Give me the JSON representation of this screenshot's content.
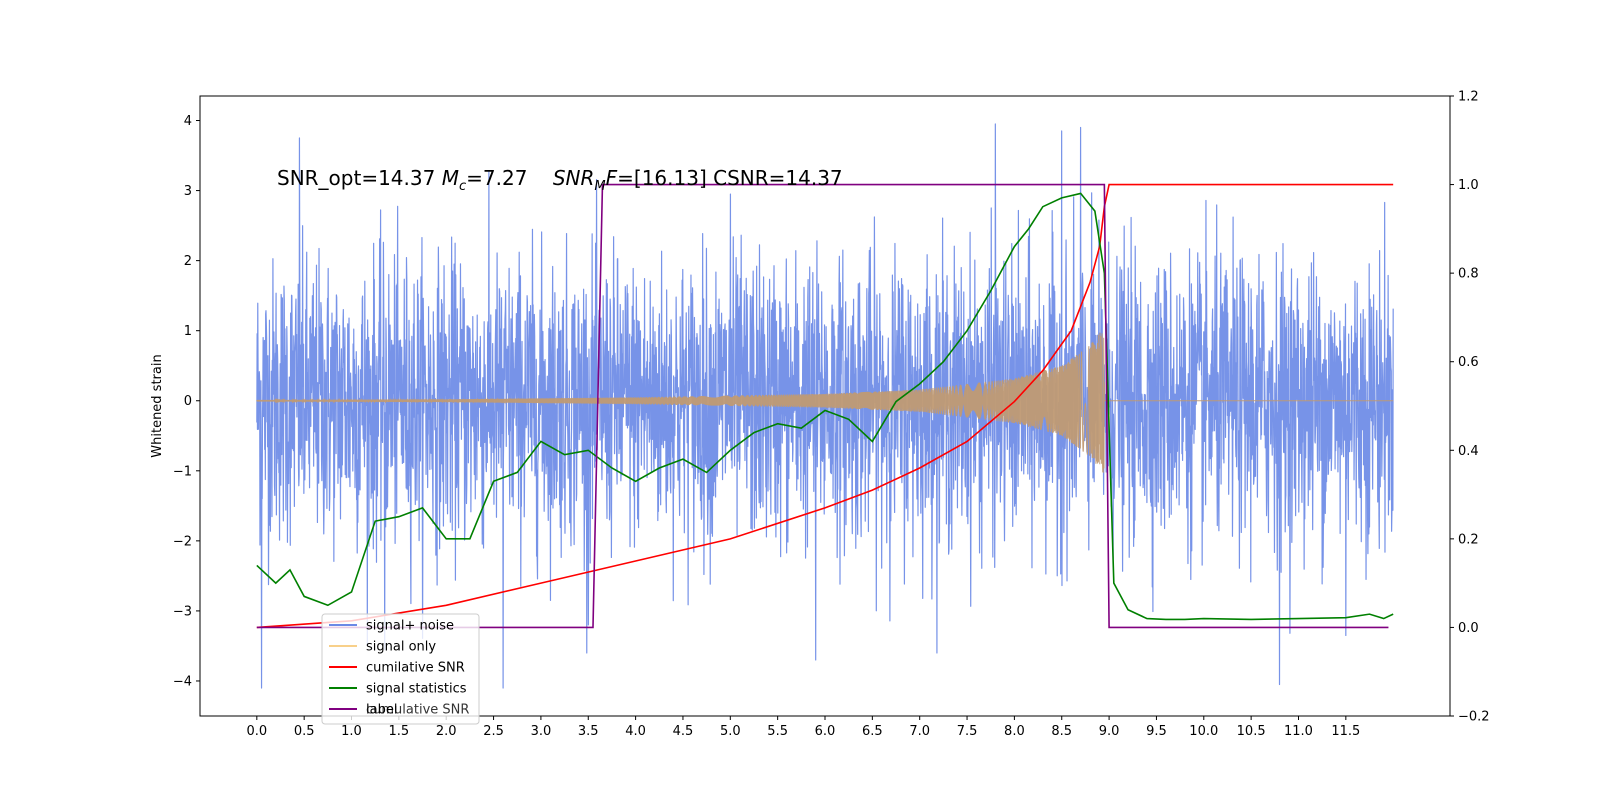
{
  "chart_data": {
    "type": "line",
    "title": "",
    "xlabel": "",
    "ylabel": "Whitened strain",
    "ylabel_right": "",
    "xlim": [
      -0.6,
      12.6
    ],
    "ylim": [
      -4.5,
      4.35
    ],
    "ylim_right": [
      -0.2,
      1.2
    ],
    "x_ticks": [
      0.0,
      0.5,
      1.0,
      1.5,
      2.0,
      2.5,
      3.0,
      3.5,
      4.0,
      4.5,
      5.0,
      5.5,
      6.0,
      6.5,
      7.0,
      7.5,
      8.0,
      8.5,
      9.0,
      9.5,
      10.0,
      10.5,
      11.0,
      11.5
    ],
    "x_tick_labels": [
      "0.0",
      "0.5",
      "1.0",
      "1.5",
      "2.0",
      "2.5",
      "3.0",
      "3.5",
      "4.0",
      "4.5",
      "5.0",
      "5.5",
      "6.0",
      "6.5",
      "7.0",
      "7.5",
      "8.0",
      "8.5",
      "9.0",
      "9.5",
      "10.0",
      "10.5",
      "11.0",
      "11.5"
    ],
    "y_ticks": [
      -4,
      -3,
      -2,
      -1,
      0,
      1,
      2,
      3,
      4
    ],
    "y_tick_labels": [
      "−4",
      "−3",
      "−2",
      "−1",
      "0",
      "1",
      "2",
      "3",
      "4"
    ],
    "y_right_ticks": [
      -0.2,
      0.0,
      0.2,
      0.4,
      0.6,
      0.8,
      1.0,
      1.2
    ],
    "y_right_tick_labels": [
      "−0.2",
      "0.0",
      "0.2",
      "0.4",
      "0.6",
      "0.8",
      "1.0",
      "1.2"
    ],
    "annotation": {
      "part1": "SNR_opt=14.37 ",
      "part2_italic": "M",
      "part2_sub": "c",
      "part3": "=7.27    ",
      "part4_italic": "SNR",
      "part4_sub": "M",
      "part5_italic": "F",
      "part6": "=[16.13] CSNR=14.37"
    },
    "legend_position": "lower-left",
    "legend_ghost_label": "cumulative SNR",
    "colors": {
      "signal_noise": "#6b8ae6",
      "signal_only": "#f5c163",
      "signal_only_fill": "#c09a73",
      "cumulative": "#ff0000",
      "statistics": "#008000",
      "label": "#800080"
    },
    "series": [
      {
        "name": "signal+ noise",
        "axis": "left",
        "x_range": [
          0.0,
          12.0
        ],
        "amplitude_sigma": 1.0,
        "noise_peaks": [
          [
            0.05,
            -4.1
          ],
          [
            0.45,
            3.75
          ],
          [
            1.35,
            -3.55
          ],
          [
            2.6,
            -4.1
          ],
          [
            3.5,
            -3.2
          ],
          [
            5.0,
            2.95
          ],
          [
            5.9,
            -3.7
          ],
          [
            7.8,
            3.95
          ],
          [
            8.5,
            3.85
          ],
          [
            8.7,
            3.9
          ],
          [
            10.8,
            -4.05
          ],
          [
            11.5,
            -3.35
          ]
        ]
      },
      {
        "name": "signal only",
        "axis": "left",
        "x_range": [
          0.0,
          8.95
        ],
        "envelope": [
          [
            0.0,
            0.01
          ],
          [
            2.0,
            0.02
          ],
          [
            4.0,
            0.05
          ],
          [
            6.0,
            0.1
          ],
          [
            7.0,
            0.16
          ],
          [
            8.0,
            0.32
          ],
          [
            8.5,
            0.5
          ],
          [
            8.8,
            0.8
          ],
          [
            8.95,
            1.05
          ]
        ]
      },
      {
        "name": "cumilative SNR",
        "axis": "right",
        "x": [
          0.0,
          1.0,
          2.0,
          3.0,
          4.0,
          5.0,
          6.0,
          6.5,
          7.0,
          7.5,
          8.0,
          8.3,
          8.6,
          8.8,
          8.9,
          8.95,
          9.0,
          12.0
        ],
        "y": [
          0.0,
          0.015,
          0.05,
          0.1,
          0.15,
          0.2,
          0.27,
          0.31,
          0.36,
          0.42,
          0.51,
          0.58,
          0.67,
          0.78,
          0.86,
          0.95,
          1.0,
          1.0
        ]
      },
      {
        "name": "signal statistics",
        "axis": "right",
        "x": [
          0.0,
          0.2,
          0.35,
          0.5,
          0.75,
          1.0,
          1.25,
          1.5,
          1.75,
          2.0,
          2.25,
          2.5,
          2.75,
          3.0,
          3.25,
          3.5,
          3.75,
          4.0,
          4.25,
          4.5,
          4.75,
          5.0,
          5.25,
          5.5,
          5.75,
          6.0,
          6.25,
          6.5,
          6.75,
          7.0,
          7.25,
          7.5,
          7.75,
          8.0,
          8.15,
          8.3,
          8.5,
          8.7,
          8.85,
          8.95,
          9.05,
          9.2,
          9.4,
          9.6,
          9.8,
          10.0,
          10.5,
          11.0,
          11.5,
          11.75,
          11.9,
          12.0
        ],
        "y": [
          0.14,
          0.1,
          0.13,
          0.07,
          0.05,
          0.08,
          0.24,
          0.25,
          0.27,
          0.2,
          0.2,
          0.33,
          0.35,
          0.42,
          0.39,
          0.4,
          0.36,
          0.33,
          0.36,
          0.38,
          0.35,
          0.4,
          0.44,
          0.46,
          0.45,
          0.49,
          0.47,
          0.42,
          0.51,
          0.55,
          0.6,
          0.67,
          0.76,
          0.86,
          0.9,
          0.95,
          0.97,
          0.98,
          0.94,
          0.8,
          0.1,
          0.04,
          0.02,
          0.018,
          0.018,
          0.02,
          0.018,
          0.02,
          0.022,
          0.03,
          0.02,
          0.03
        ]
      },
      {
        "name": "label",
        "axis": "right",
        "x": [
          0.0,
          3.55,
          3.65,
          8.95,
          9.0,
          11.95
        ],
        "y": [
          0.0,
          0.0,
          1.0,
          1.0,
          0.0,
          0.0
        ]
      }
    ]
  }
}
